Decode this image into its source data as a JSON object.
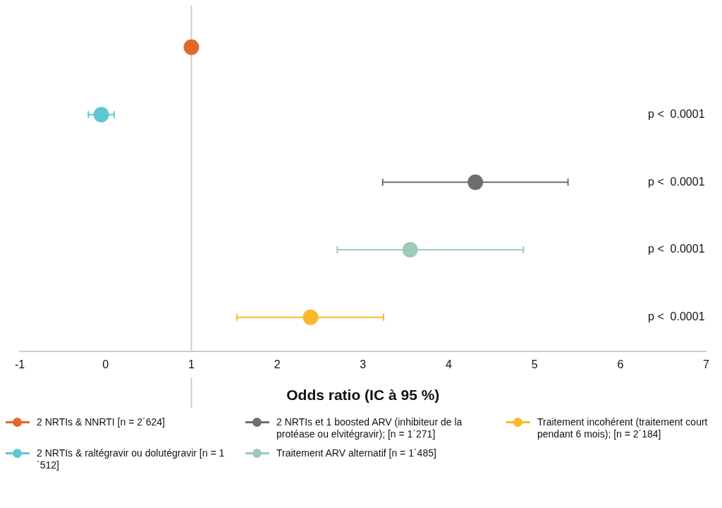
{
  "chart_data": {
    "type": "scatter",
    "orientation": "horizontal",
    "xlabel": "Odds ratio (IC à 95 %)",
    "categories": [
      null,
      null,
      null,
      null,
      null
    ],
    "xlim": [
      -1,
      7
    ],
    "xticks": [
      -1,
      0,
      1,
      2,
      3,
      4,
      5,
      6,
      7
    ],
    "grid": false,
    "legend": "bottom",
    "marker": "circle",
    "ref_lines": [
      {
        "axis": "x",
        "value": 1,
        "color": "#cccccc"
      }
    ],
    "annotations": [
      "p <  0.0001",
      "p <  0.0001",
      "p <  0.0001",
      "p <  0.0001"
    ],
    "series": [
      {
        "name": "2 NRTIs & NNRTI [n = 2´624]",
        "color": "#e2682a",
        "values": [
          1,
          null,
          null,
          null,
          null
        ]
      },
      {
        "name": "2 NRTIs & raltégravir ou dolutégravir [n = 1´512]",
        "color": "#5ec8d2",
        "values": [
          null,
          -0.05,
          null,
          null,
          null
        ],
        "errors": [
          null,
          [
            -0.2,
            0.1
          ],
          null,
          null,
          null
        ]
      },
      {
        "name": "2 NRTIs et 1 boosted ARV (inhibiteur de la protéase ou elvitégravir); [n = 1´271]",
        "color": "#6e6e6e",
        "values": [
          null,
          null,
          4.31,
          null,
          null
        ],
        "errors": [
          null,
          null,
          [
            3.23,
            5.39
          ],
          null,
          null
        ]
      },
      {
        "name": "Traitement ARV alternatif [n = 1´485]",
        "color": "#9ccbb8",
        "values": [
          null,
          null,
          null,
          3.55,
          null
        ],
        "errors": [
          null,
          null,
          null,
          [
            2.7,
            4.87
          ],
          null
        ]
      },
      {
        "name": "Traitement incohérent (traitement court pendant 6 mois); [n = 2´184]",
        "color": "#f9b92b",
        "values": [
          null,
          null,
          null,
          null,
          2.39
        ],
        "errors": [
          null,
          null,
          null,
          null,
          [
            1.53,
            3.24
          ]
        ]
      }
    ]
  }
}
